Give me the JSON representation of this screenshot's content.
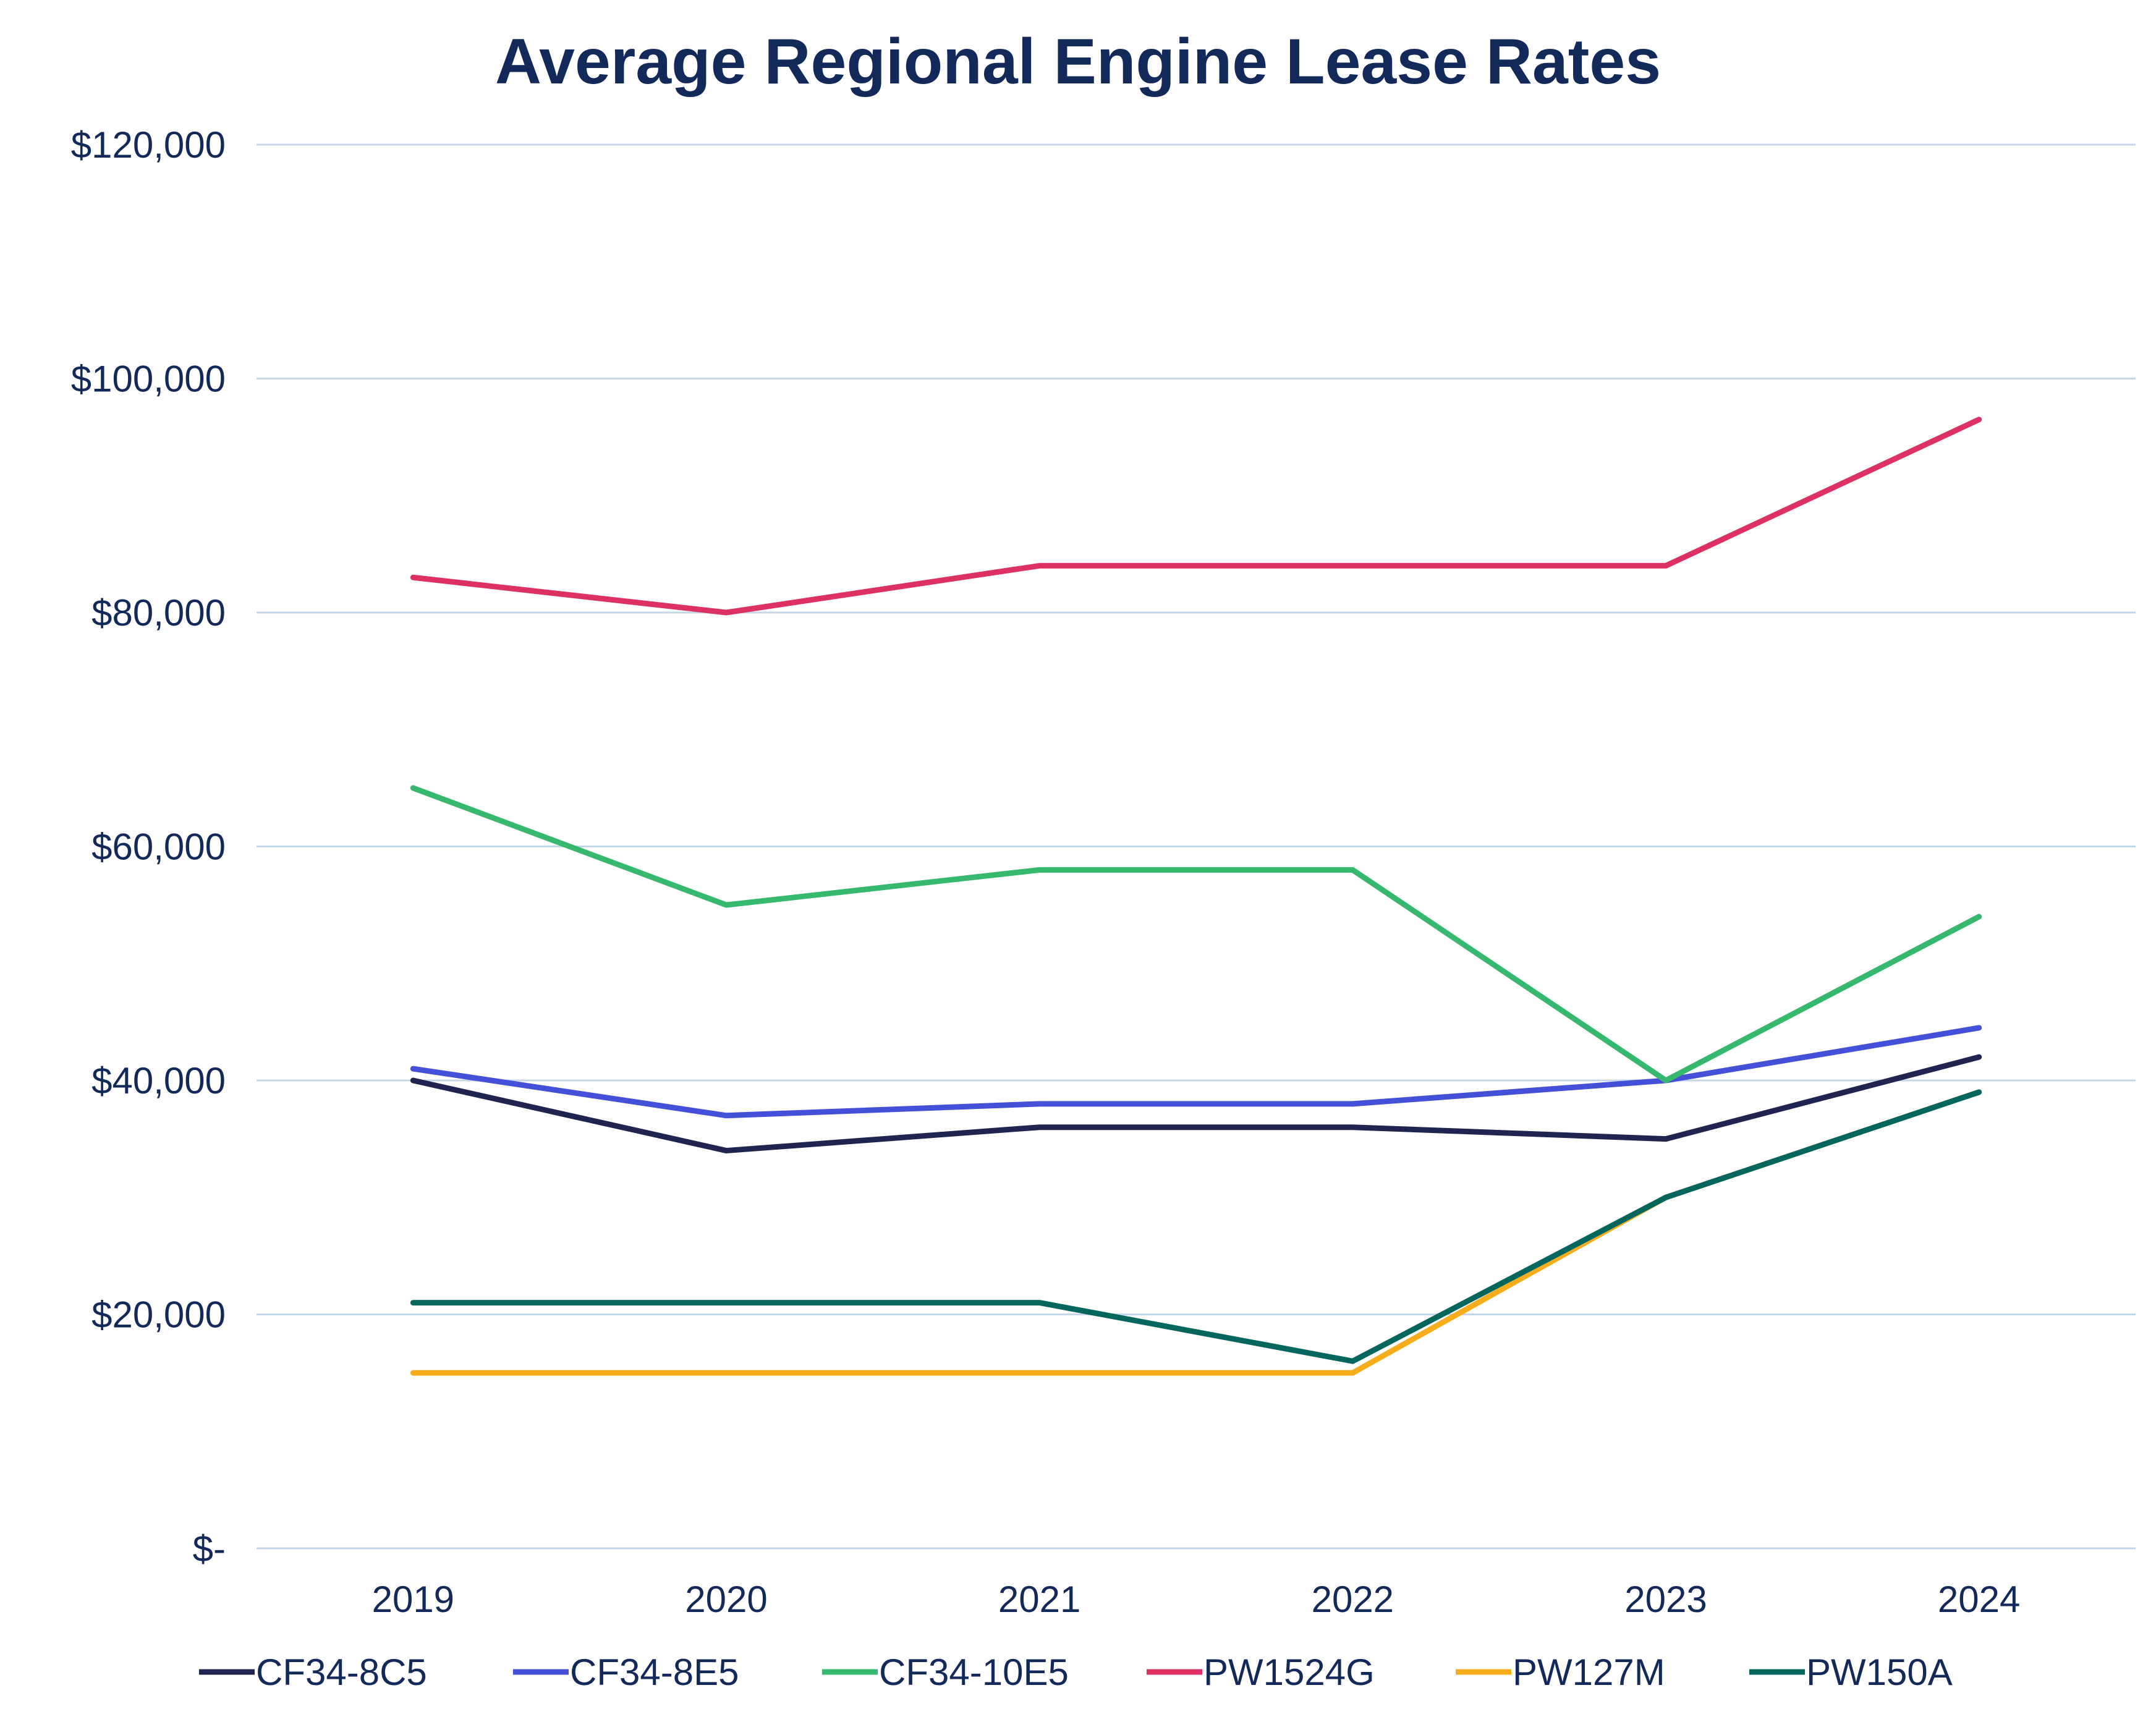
{
  "chart_data": {
    "type": "line",
    "title": "Average Regional Engine Lease Rates",
    "xlabel": "",
    "ylabel": "",
    "categories": [
      "2019",
      "2020",
      "2021",
      "2022",
      "2023",
      "2024"
    ],
    "ylim": [
      0,
      120000
    ],
    "yticks": [
      0,
      20000,
      40000,
      60000,
      80000,
      100000,
      120000
    ],
    "ytick_labels": [
      "$-",
      "$20,000",
      "$40,000",
      "$60,000",
      "$80,000",
      "$100,000",
      "$120,000"
    ],
    "grid": "horizontal",
    "legend_position": "bottom",
    "series": [
      {
        "name": "CF34-8C5",
        "color": "#1f2550",
        "values": [
          40000,
          34000,
          36000,
          36000,
          35000,
          42000
        ]
      },
      {
        "name": "CF34-8E5",
        "color": "#4450d8",
        "values": [
          41000,
          37000,
          38000,
          38000,
          40000,
          44500
        ]
      },
      {
        "name": "CF34-10E5",
        "color": "#36b86e",
        "values": [
          65000,
          55000,
          58000,
          58000,
          40000,
          54000
        ]
      },
      {
        "name": "PW1524G",
        "color": "#de3163",
        "values": [
          83000,
          80000,
          84000,
          84000,
          84000,
          96500
        ]
      },
      {
        "name": "PW127M",
        "color": "#f5ad1c",
        "values": [
          15000,
          15000,
          15000,
          15000,
          30000,
          39000
        ]
      },
      {
        "name": "PW150A",
        "color": "#05665e",
        "values": [
          21000,
          21000,
          21000,
          16000,
          30000,
          39000
        ]
      }
    ]
  }
}
